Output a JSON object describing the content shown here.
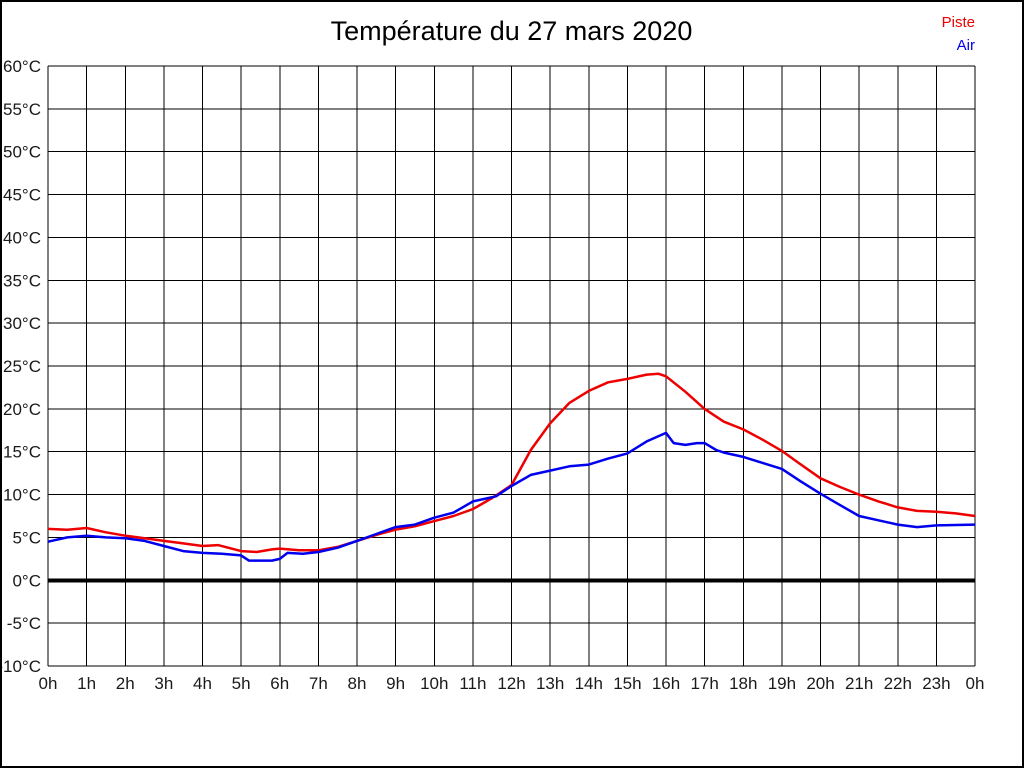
{
  "chart_data": {
    "type": "line",
    "title": "Température du 27 mars 2020",
    "xlabel": "",
    "ylabel": "",
    "xlim": [
      0,
      24
    ],
    "ylim": [
      -10,
      60
    ],
    "x_tick_step_hours": 1,
    "y_tick_step_degrees": 5,
    "x_tick_labels": [
      "0h",
      "1h",
      "2h",
      "3h",
      "4h",
      "5h",
      "6h",
      "7h",
      "8h",
      "9h",
      "10h",
      "11h",
      "12h",
      "13h",
      "14h",
      "15h",
      "16h",
      "17h",
      "18h",
      "19h",
      "20h",
      "21h",
      "22h",
      "23h",
      "0h"
    ],
    "y_tick_labels": [
      "60°C",
      "55°C",
      "50°C",
      "45°C",
      "40°C",
      "35°C",
      "30°C",
      "25°C",
      "20°C",
      "15°C",
      "10°C",
      "5°C",
      "0°C",
      "-5°C",
      "-10°C"
    ],
    "grid": true,
    "grid_color": "#000000",
    "zero_line": true,
    "zero_line_color": "#000000",
    "background_color": "#ffffff",
    "legend_position": "top-right",
    "series": [
      {
        "name": "Piste",
        "color": "#ee0000",
        "points": [
          [
            0,
            6.0
          ],
          [
            0.5,
            5.9
          ],
          [
            1,
            6.1
          ],
          [
            1.5,
            5.6
          ],
          [
            2,
            5.2
          ],
          [
            2.5,
            4.9
          ],
          [
            3,
            4.6
          ],
          [
            3.5,
            4.3
          ],
          [
            4,
            4.0
          ],
          [
            4.4,
            4.1
          ],
          [
            5,
            3.4
          ],
          [
            5.4,
            3.3
          ],
          [
            5.8,
            3.6
          ],
          [
            6,
            3.7
          ],
          [
            6.5,
            3.5
          ],
          [
            7,
            3.5
          ],
          [
            7.5,
            3.9
          ],
          [
            8,
            4.6
          ],
          [
            8.5,
            5.3
          ],
          [
            9,
            5.9
          ],
          [
            9.5,
            6.3
          ],
          [
            10,
            6.9
          ],
          [
            10.5,
            7.5
          ],
          [
            11,
            8.3
          ],
          [
            11.5,
            9.6
          ],
          [
            12,
            11.1
          ],
          [
            12.5,
            15.2
          ],
          [
            13,
            18.3
          ],
          [
            13.5,
            20.7
          ],
          [
            14,
            22.1
          ],
          [
            14.5,
            23.1
          ],
          [
            15,
            23.5
          ],
          [
            15.5,
            24.0
          ],
          [
            15.8,
            24.1
          ],
          [
            16,
            23.8
          ],
          [
            16.5,
            22.0
          ],
          [
            17,
            20.0
          ],
          [
            17.5,
            18.5
          ],
          [
            18,
            17.6
          ],
          [
            18.5,
            16.4
          ],
          [
            19,
            15.1
          ],
          [
            19.4,
            13.8
          ],
          [
            20,
            11.9
          ],
          [
            20.5,
            10.9
          ],
          [
            21,
            10.0
          ],
          [
            21.5,
            9.2
          ],
          [
            22,
            8.5
          ],
          [
            22.5,
            8.1
          ],
          [
            23,
            8.0
          ],
          [
            23.5,
            7.8
          ],
          [
            24,
            7.5
          ]
        ]
      },
      {
        "name": "Air",
        "color": "#0000ee",
        "points": [
          [
            0,
            4.5
          ],
          [
            0.5,
            5.0
          ],
          [
            1,
            5.2
          ],
          [
            1.5,
            5.0
          ],
          [
            2,
            4.9
          ],
          [
            2.5,
            4.6
          ],
          [
            3,
            4.0
          ],
          [
            3.5,
            3.4
          ],
          [
            4,
            3.2
          ],
          [
            4.5,
            3.1
          ],
          [
            5,
            2.9
          ],
          [
            5.2,
            2.3
          ],
          [
            5.8,
            2.3
          ],
          [
            6,
            2.5
          ],
          [
            6.2,
            3.2
          ],
          [
            6.6,
            3.1
          ],
          [
            7,
            3.3
          ],
          [
            7.5,
            3.8
          ],
          [
            8,
            4.6
          ],
          [
            8.5,
            5.4
          ],
          [
            9,
            6.2
          ],
          [
            9.5,
            6.5
          ],
          [
            10,
            7.3
          ],
          [
            10.5,
            7.9
          ],
          [
            11,
            9.2
          ],
          [
            11.3,
            9.5
          ],
          [
            11.6,
            9.8
          ],
          [
            12,
            11.0
          ],
          [
            12.5,
            12.3
          ],
          [
            13,
            12.8
          ],
          [
            13.5,
            13.3
          ],
          [
            14,
            13.5
          ],
          [
            14.5,
            14.2
          ],
          [
            15,
            14.8
          ],
          [
            15.5,
            16.2
          ],
          [
            16,
            17.2
          ],
          [
            16.2,
            16.0
          ],
          [
            16.5,
            15.8
          ],
          [
            16.8,
            16.0
          ],
          [
            17,
            16.0
          ],
          [
            17.3,
            15.2
          ],
          [
            17.5,
            14.9
          ],
          [
            18,
            14.4
          ],
          [
            18.5,
            13.7
          ],
          [
            19,
            13.0
          ],
          [
            19.5,
            11.5
          ],
          [
            20,
            10.1
          ],
          [
            20.5,
            8.8
          ],
          [
            21,
            7.5
          ],
          [
            21.5,
            7.0
          ],
          [
            22,
            6.5
          ],
          [
            22.5,
            6.2
          ],
          [
            23,
            6.4
          ],
          [
            24,
            6.5
          ]
        ]
      }
    ]
  }
}
